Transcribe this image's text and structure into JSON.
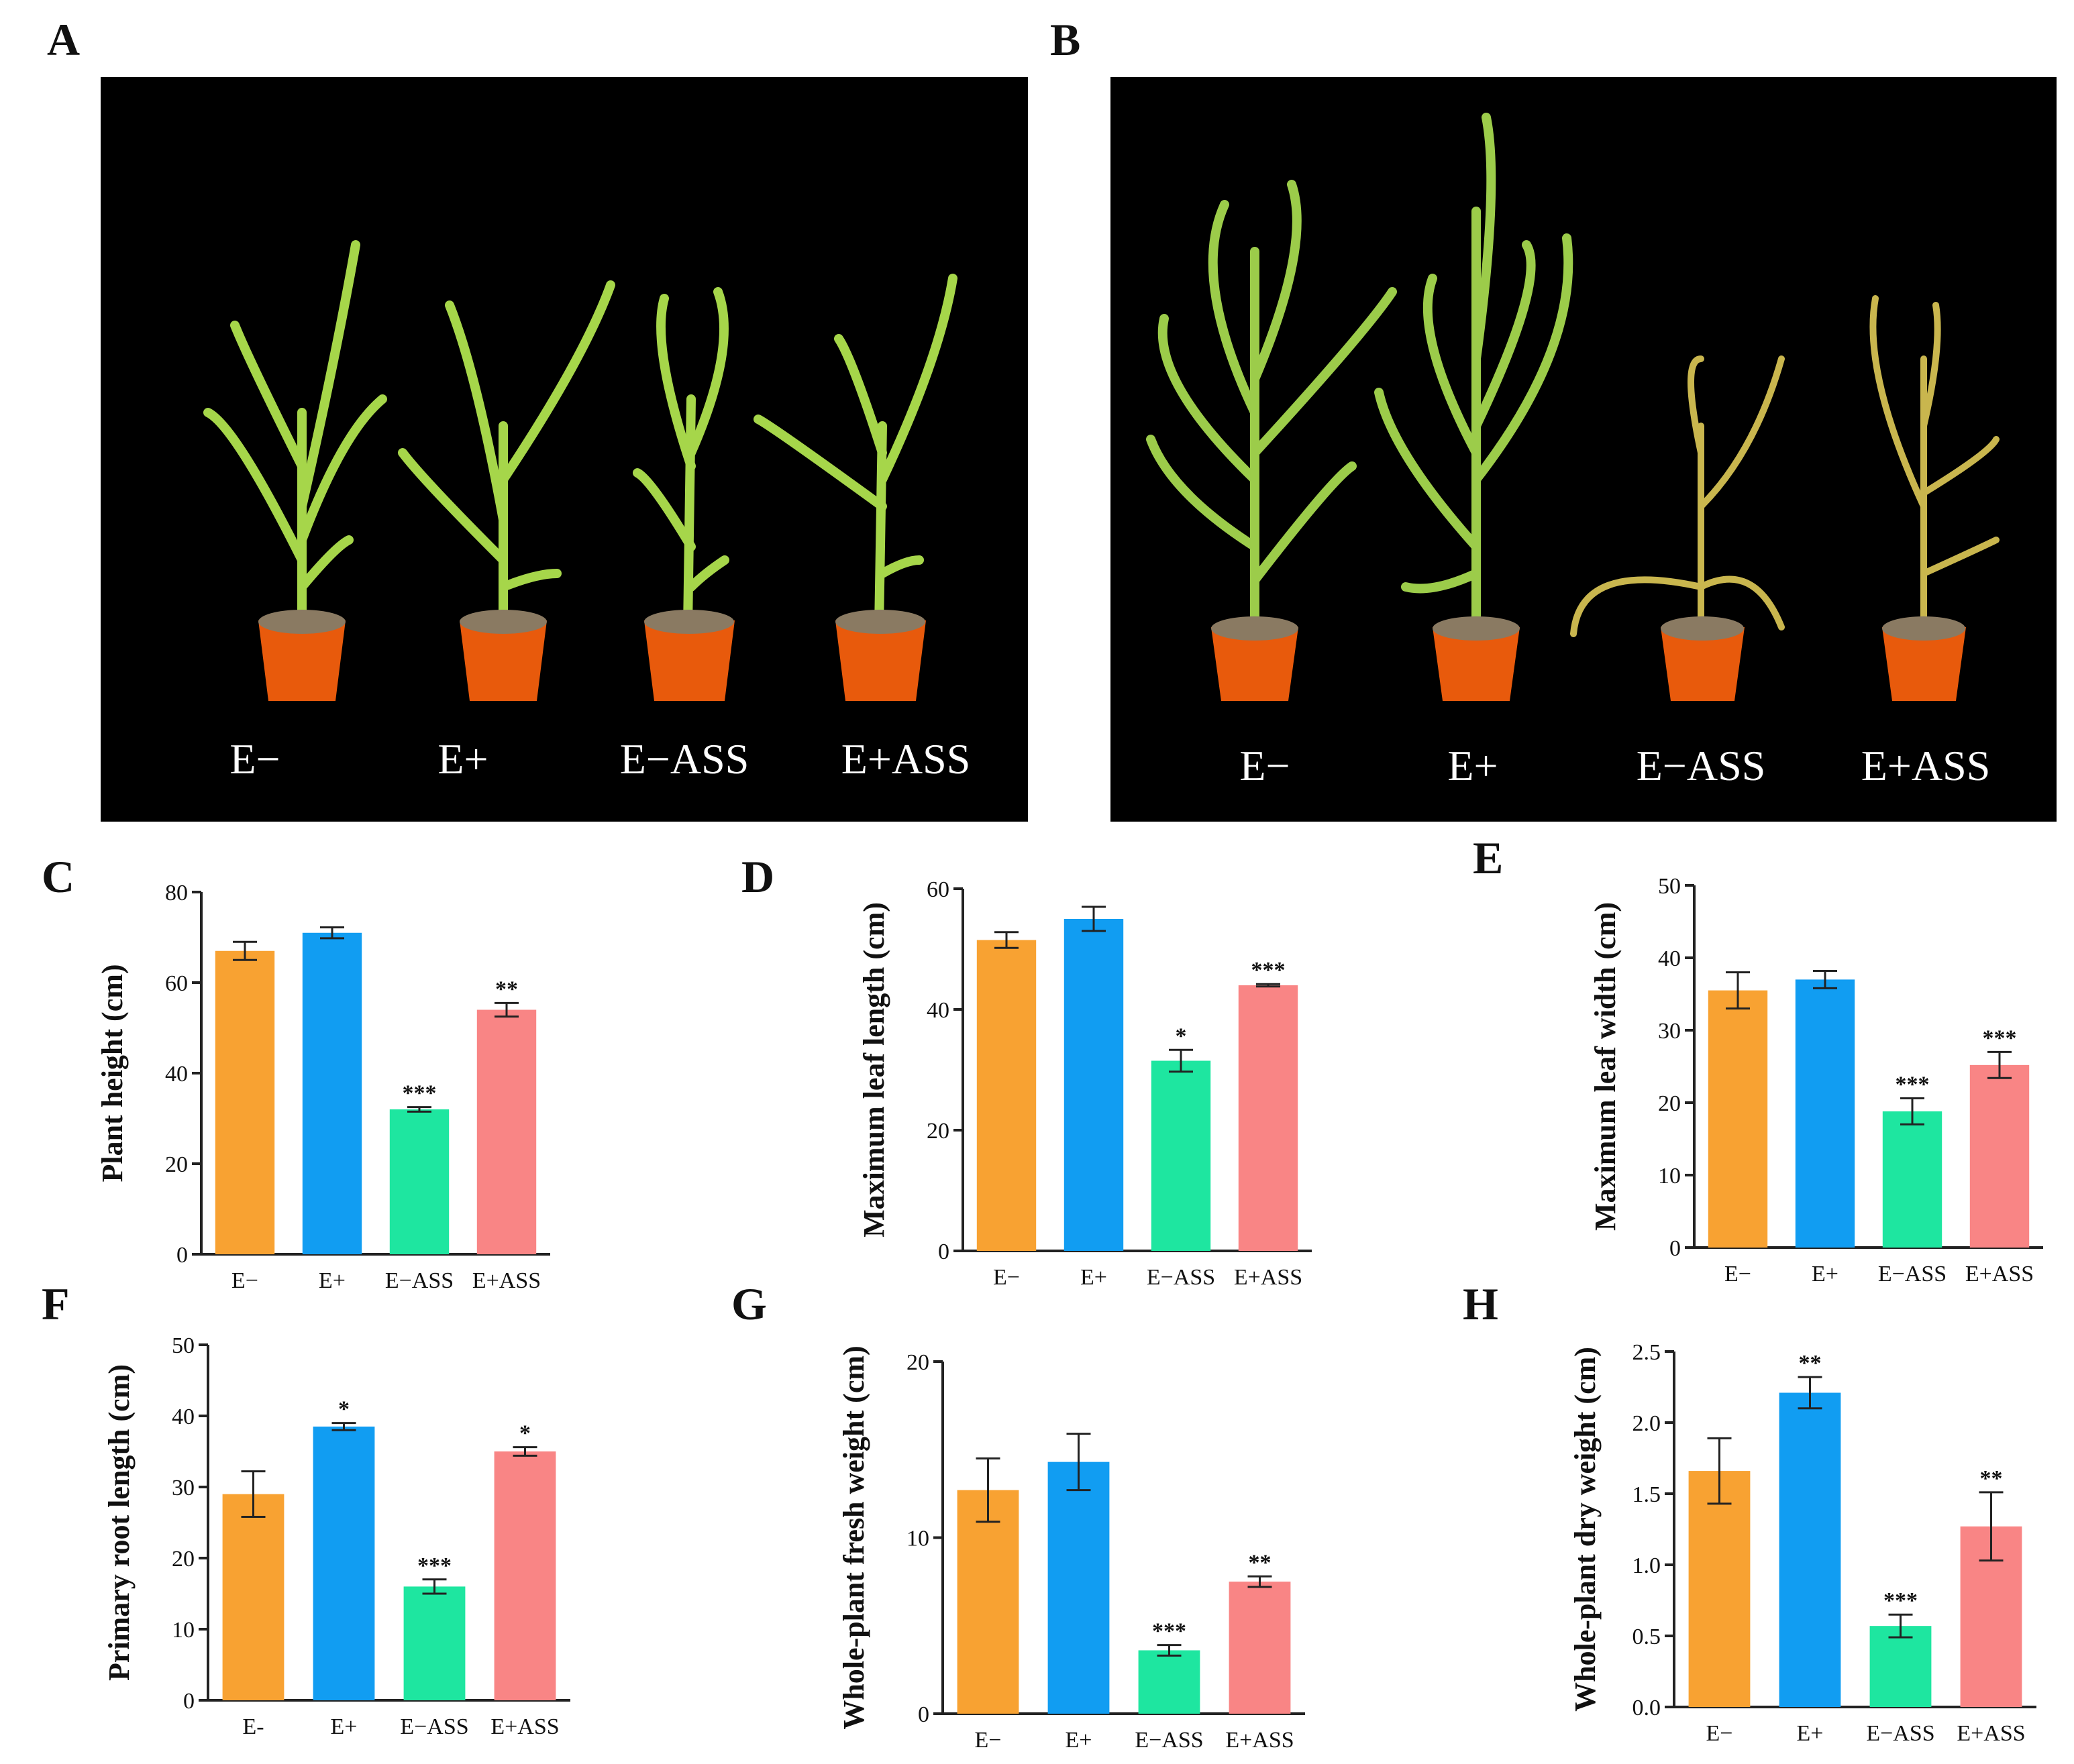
{
  "panels": {
    "A": "A",
    "B": "B",
    "C": "C",
    "D": "D",
    "E": "E",
    "F": "F",
    "G": "G",
    "H": "H"
  },
  "photo_A": {
    "labels": [
      "E−",
      "E+",
      "E−ASS",
      "E+ASS"
    ]
  },
  "photo_B": {
    "labels": [
      "E−",
      "E+",
      "E−ASS",
      "E+ASS"
    ]
  },
  "colors": {
    "E-": "#F8A232",
    "E+": "#119DF2",
    "E-ASS": "#1EE6A0",
    "E+ASS": "#F98585"
  },
  "chart_data": [
    {
      "id": "C",
      "type": "bar",
      "categories": [
        "E−",
        "E+",
        "E−ASS",
        "E+ASS"
      ],
      "values": [
        67,
        71,
        32,
        54
      ],
      "errors": [
        2,
        1.2,
        0.5,
        1.5
      ],
      "significance": [
        "",
        "",
        "***",
        "**"
      ],
      "ylabel": "Plant height (cm)",
      "ylim": [
        0,
        80
      ],
      "yticks": [
        0,
        20,
        40,
        60,
        80
      ]
    },
    {
      "id": "D",
      "type": "bar",
      "categories": [
        "E−",
        "E+",
        "E−ASS",
        "E+ASS"
      ],
      "values": [
        51.5,
        55,
        31.5,
        44
      ],
      "errors": [
        1.3,
        2,
        1.8,
        0.2
      ],
      "significance": [
        "",
        "",
        "*",
        "***"
      ],
      "ylabel": "Maximum leaf length (cm)",
      "ylim": [
        0,
        60
      ],
      "yticks": [
        0,
        20,
        40,
        60
      ]
    },
    {
      "id": "E",
      "type": "bar",
      "categories": [
        "E−",
        "E+",
        "E−ASS",
        "E+ASS"
      ],
      "values": [
        35.5,
        37,
        18.8,
        25.2
      ],
      "errors": [
        2.5,
        1.2,
        1.8,
        1.8
      ],
      "significance": [
        "",
        "",
        "***",
        "***"
      ],
      "ylabel": "Maximum leaf width (cm)",
      "ylim": [
        0,
        50
      ],
      "yticks": [
        0,
        10,
        20,
        30,
        40,
        50
      ]
    },
    {
      "id": "F",
      "type": "bar",
      "categories": [
        "E-",
        "E+",
        "E−ASS",
        "E+ASS"
      ],
      "values": [
        29,
        38.5,
        16,
        35
      ],
      "errors": [
        3.2,
        0.5,
        1,
        0.6
      ],
      "significance": [
        "",
        "*",
        "***",
        "*"
      ],
      "ylabel": "Primary root length (cm)",
      "ylim": [
        0,
        50
      ],
      "yticks": [
        0,
        10,
        20,
        30,
        40,
        50
      ]
    },
    {
      "id": "G",
      "type": "bar",
      "categories": [
        "E−",
        "E+",
        "E−ASS",
        "E+ASS"
      ],
      "values": [
        12.7,
        14.3,
        3.6,
        7.5
      ],
      "errors": [
        1.8,
        1.6,
        0.3,
        0.3
      ],
      "significance": [
        "",
        "",
        "***",
        "**"
      ],
      "ylabel": "Whole-plant fresh weight (cm)",
      "ylim": [
        0,
        20
      ],
      "yticks": [
        0,
        10,
        20
      ]
    },
    {
      "id": "H",
      "type": "bar",
      "categories": [
        "E−",
        "E+",
        "E−ASS",
        "E+ASS"
      ],
      "values": [
        1.66,
        2.21,
        0.57,
        1.27
      ],
      "errors": [
        0.23,
        0.11,
        0.08,
        0.24
      ],
      "significance": [
        "",
        "**",
        "***",
        "**"
      ],
      "ylabel": "Whole-plant dry weight (cm)",
      "ylim": [
        0,
        2.5
      ],
      "yticks": [
        0.0,
        0.5,
        1.0,
        1.5,
        2.0,
        2.5
      ],
      "tick_decimals": 1
    }
  ]
}
